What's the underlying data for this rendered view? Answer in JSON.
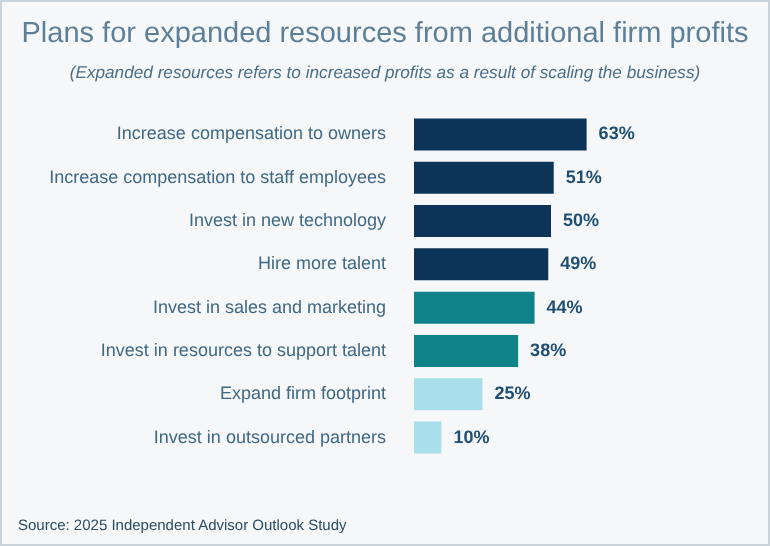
{
  "chart_data": {
    "type": "bar",
    "orientation": "horizontal",
    "title": "Plans for expanded resources from additional firm profits",
    "subtitle": "(Expanded resources refers to increased profits as a result of scaling the business)",
    "categories": [
      "Increase compensation to owners",
      "Increase compensation to staff employees",
      "Invest in new technology",
      "Hire more talent",
      "Invest in sales and marketing",
      "Invest in resources to support talent",
      "Expand firm footprint",
      "Invest in outsourced partners"
    ],
    "values": [
      63,
      51,
      50,
      49,
      44,
      38,
      25,
      10
    ],
    "colors": [
      "#0b3457",
      "#0b3457",
      "#0b3457",
      "#0b3457",
      "#10828a",
      "#10828a",
      "#a9dfec",
      "#a9dfec"
    ],
    "value_labels": [
      "63%",
      "51%",
      "50%",
      "49%",
      "44%",
      "38%",
      "25%",
      "10%"
    ],
    "annotations": [
      "Source: 2025 Independent Advisor Outlook Study"
    ],
    "grid": false,
    "legend": false
  }
}
